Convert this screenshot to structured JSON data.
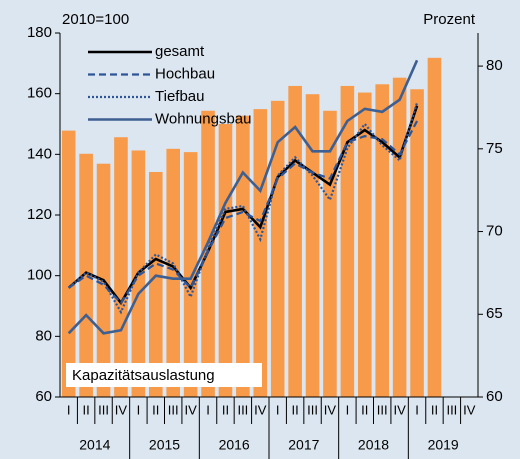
{
  "chart_data": {
    "type": "bar-line",
    "y_label": "2010=100",
    "y2_label": "Prozent",
    "categories": [
      "I",
      "II",
      "III",
      "IV",
      "I",
      "II",
      "III",
      "IV",
      "I",
      "II",
      "III",
      "IV",
      "I",
      "II",
      "III",
      "IV",
      "I",
      "II",
      "III",
      "IV",
      "I",
      "II",
      "III",
      "IV"
    ],
    "years": [
      "2014",
      "2015",
      "2016",
      "2017",
      "2018",
      "2019"
    ],
    "ylim": [
      60,
      180
    ],
    "yticks": [
      60,
      80,
      100,
      120,
      140,
      160,
      180
    ],
    "y2lim": [
      60,
      82
    ],
    "y2ticks": [
      60,
      65,
      70,
      75,
      80
    ],
    "bar_series": {
      "name": "Kapazitätsauslastung",
      "color": "#f79a4a",
      "axis": "y2",
      "values": [
        76.1,
        74.7,
        74.1,
        75.7,
        74.9,
        73.6,
        75.0,
        74.8,
        77.3,
        76.5,
        77.0,
        77.4,
        77.9,
        78.8,
        78.3,
        77.3,
        78.8,
        78.4,
        78.9,
        79.3,
        78.6,
        80.5,
        null,
        null
      ]
    },
    "series": [
      {
        "name": "gesamt",
        "color": "#000000",
        "dash": "none",
        "width": 2.6,
        "values": [
          96,
          101,
          98.5,
          91,
          101,
          105.5,
          103,
          96,
          108,
          121,
          122,
          116,
          132.5,
          138,
          134,
          130,
          144,
          148,
          144,
          139,
          156,
          null,
          null,
          null
        ]
      },
      {
        "name": "Hochbau",
        "color": "#2e5597",
        "dash": "7 4",
        "width": 2.2,
        "values": [
          96,
          100,
          97,
          91,
          100,
          104,
          102,
          96,
          108,
          119,
          121,
          118,
          132,
          137,
          134,
          132,
          144,
          146,
          145,
          140,
          151,
          null,
          null,
          null
        ]
      },
      {
        "name": "Tiefbau",
        "color": "#2e5597",
        "dash": "2 2",
        "width": 2.2,
        "values": [
          96,
          101,
          98,
          88,
          101,
          107,
          104,
          93,
          109,
          122,
          123,
          112,
          133,
          139,
          133,
          125,
          142,
          150,
          143,
          138,
          157,
          null,
          null,
          null
        ]
      },
      {
        "name": "Wohnungsbau",
        "color": "#3d5f91",
        "dash": "none",
        "width": 2.6,
        "values": [
          81,
          87,
          81,
          82,
          94,
          100,
          99,
          99,
          111,
          124,
          134,
          128,
          144,
          149,
          141,
          141,
          151,
          155,
          154,
          158,
          171,
          null,
          null,
          null
        ]
      }
    ]
  }
}
